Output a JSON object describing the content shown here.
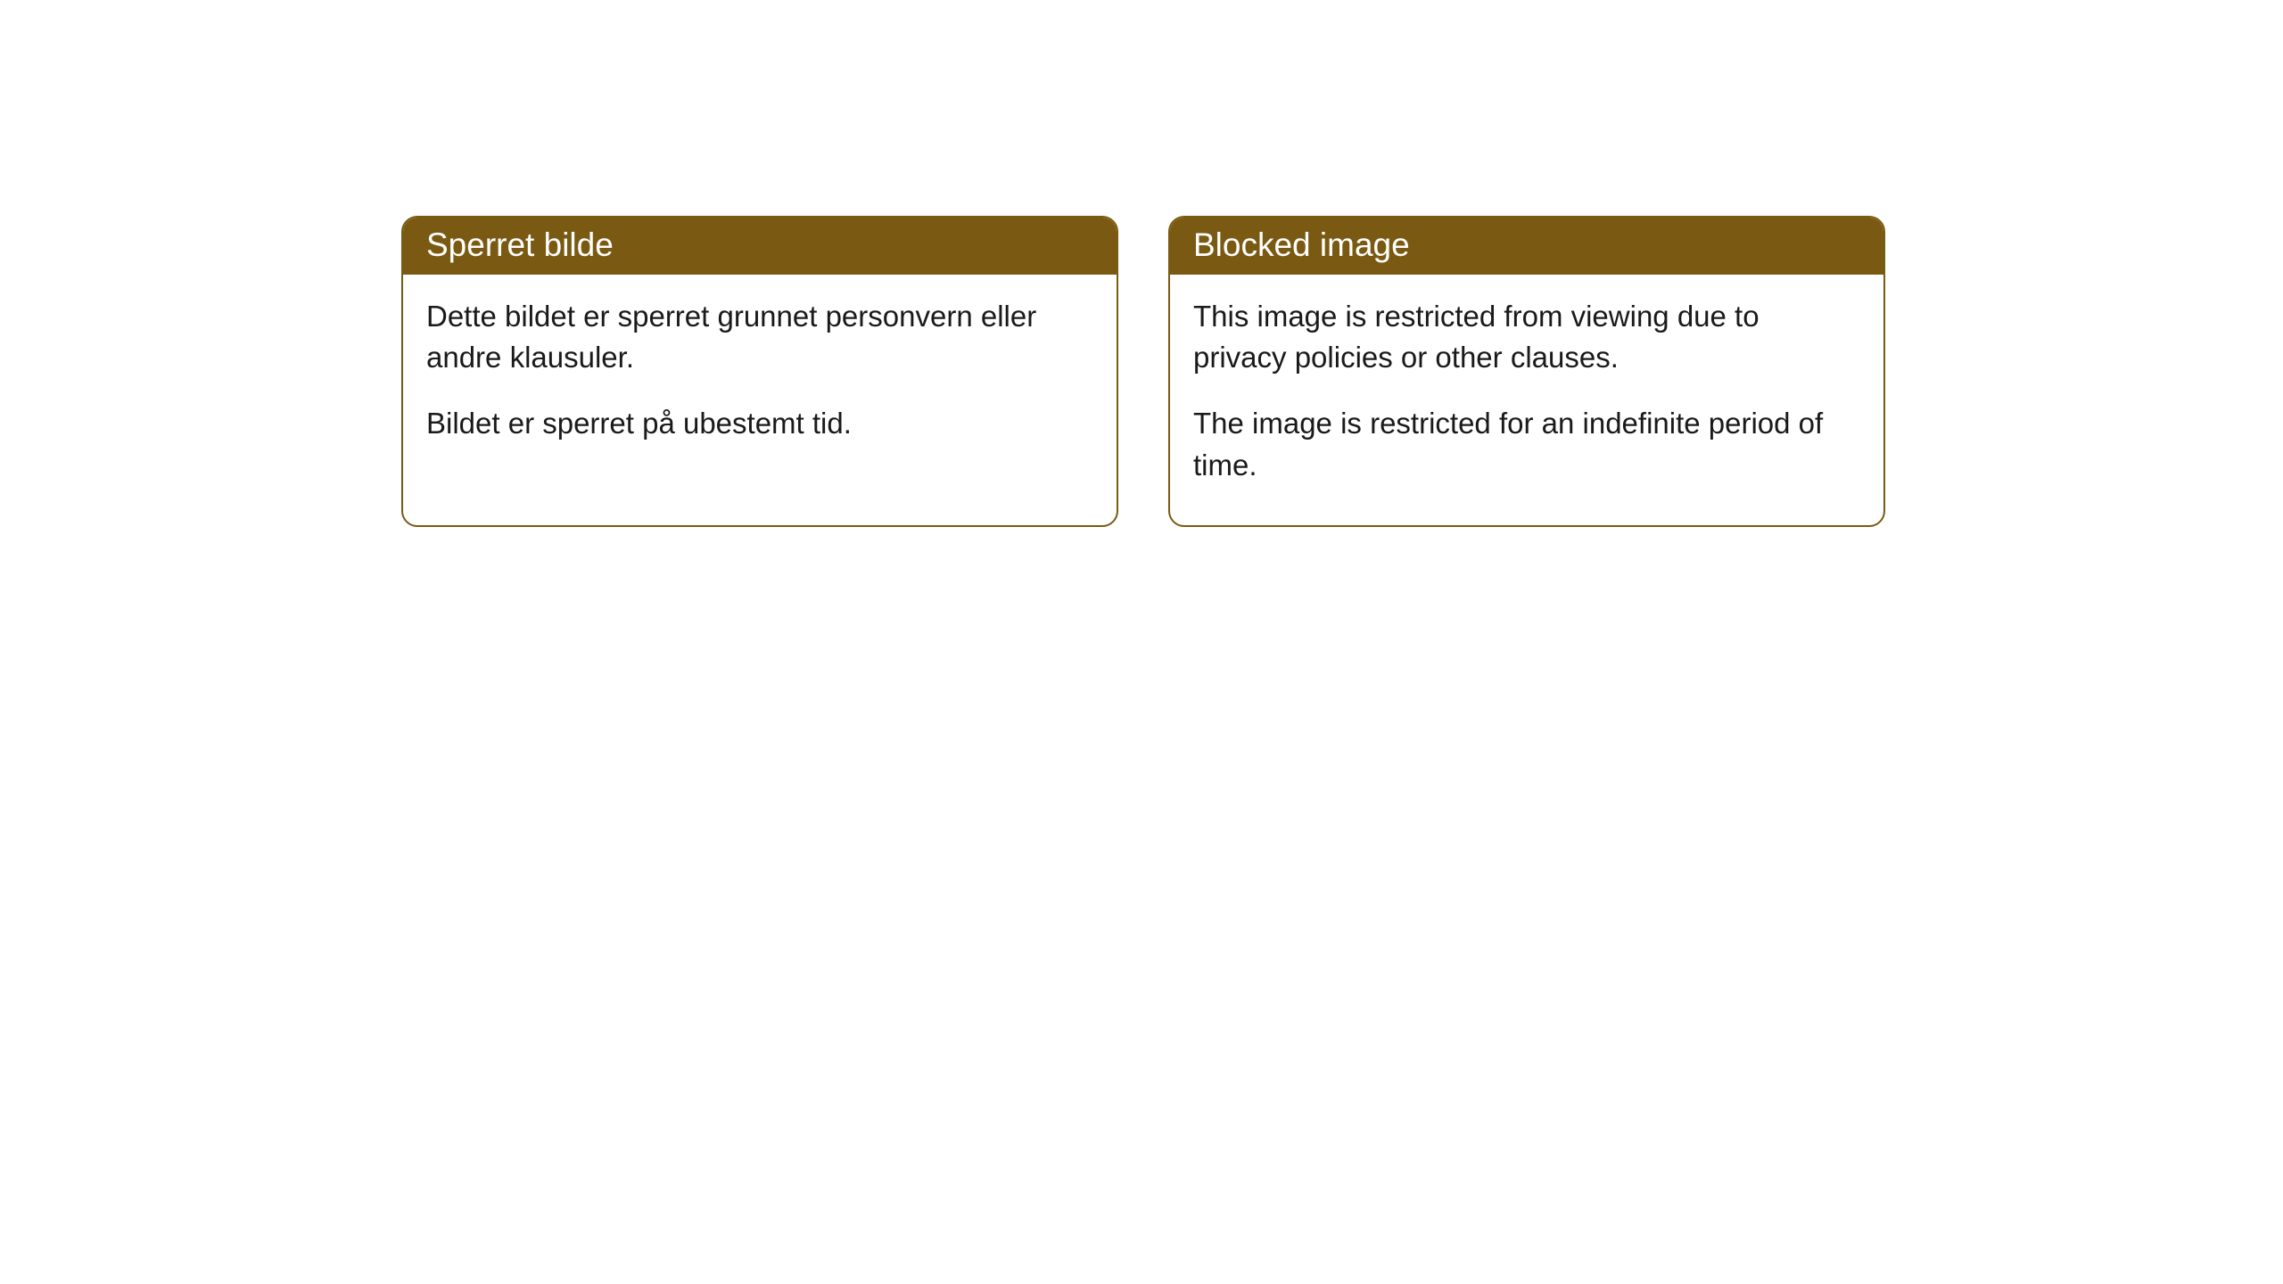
{
  "cards": [
    {
      "title": "Sperret bilde",
      "paragraph1": "Dette bildet er sperret grunnet personvern eller andre klausuler.",
      "paragraph2": "Bildet er sperret på ubestemt tid."
    },
    {
      "title": "Blocked image",
      "paragraph1": "This image is restricted from viewing due to privacy policies or other clauses.",
      "paragraph2": "The image is restricted for an indefinite period of time."
    }
  ],
  "style": {
    "header_bg": "#7a5a12",
    "header_text_color": "#ffffff",
    "border_color": "#7a5a12",
    "body_text_color": "#1a1a1a",
    "page_bg": "#ffffff",
    "border_radius": 18,
    "header_fontsize": 37,
    "body_fontsize": 33
  }
}
